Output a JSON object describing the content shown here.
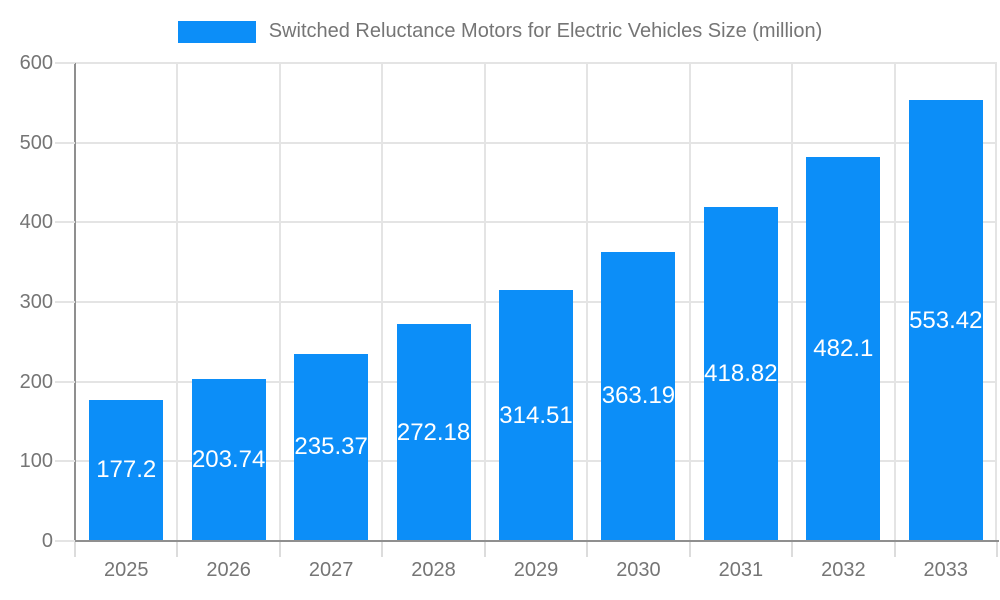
{
  "chart_data": {
    "type": "bar",
    "title": "Switched Reluctance Motors for Electric Vehicles Size (million)",
    "categories": [
      "2025",
      "2026",
      "2027",
      "2028",
      "2029",
      "2030",
      "2031",
      "2032",
      "2033"
    ],
    "values": [
      177.2,
      203.74,
      235.37,
      272.18,
      314.51,
      363.19,
      418.82,
      482.1,
      553.42
    ],
    "value_labels": [
      "177.2",
      "203.74",
      "235.37",
      "272.18",
      "314.51",
      "363.19",
      "418.82",
      "482.1",
      "553.42"
    ],
    "xlabel": "",
    "ylabel": "",
    "ylim": [
      0,
      600
    ],
    "yticks": [
      0,
      100,
      200,
      300,
      400,
      500,
      600
    ],
    "grid": true,
    "value_label_position": "inside-center",
    "legend": {
      "position": "top-center",
      "entries": [
        "Switched Reluctance Motors for Electric Vehicles Size (million)"
      ]
    },
    "colors": {
      "bar": "#0c8ef8",
      "bar_value_label": "#ffffff",
      "axis_text": "#757575",
      "legend_text": "#757575",
      "gridline": "#e4e4e4",
      "axis_line": "#8f8f8f",
      "tick": "#dcdcdc",
      "background": "#ffffff"
    }
  }
}
